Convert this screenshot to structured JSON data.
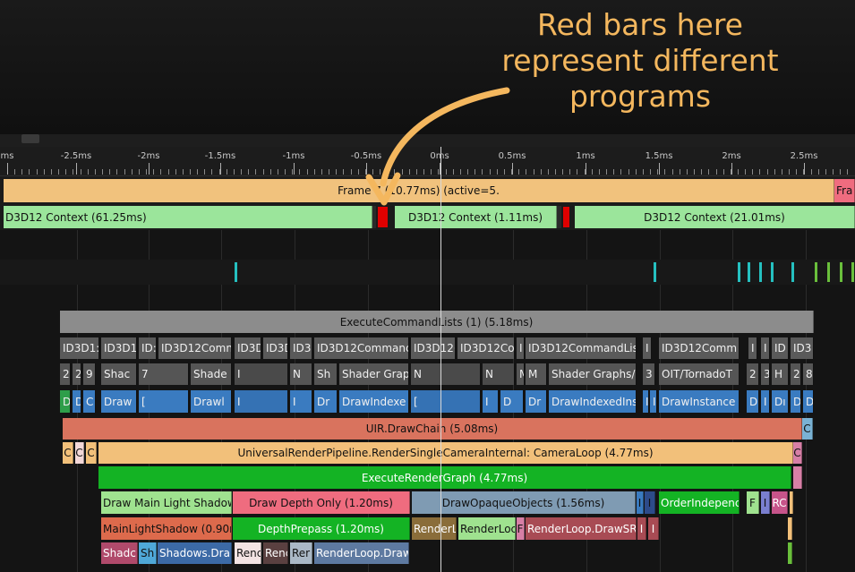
{
  "callout": {
    "lines": [
      "Red bars here",
      "represent different",
      "programs"
    ],
    "color": "#f4b75e"
  },
  "ruler": {
    "labels": [
      "ms",
      "-2.5ms",
      "-2ms",
      "-1.5ms",
      "-1ms",
      "-0.5ms",
      "0ms",
      "0.5ms",
      "1ms",
      "1.5ms",
      "2ms",
      "2.5ms"
    ]
  },
  "frame": {
    "label": "Frame 7 (10.77ms) (active=5.",
    "next_label": "Fra"
  },
  "contexts": {
    "left": "D3D12 Context (61.25ms)",
    "middle": "D3D12 Context (1.11ms)",
    "right": "D3D12 Context (21.01ms)"
  },
  "execute_command_lists": "ExecuteCommandLists (1) (5.18ms)",
  "id_row": [
    "ID3D1:",
    "ID3D1",
    "ID:",
    "ID3D12Comn",
    "ID3D",
    "ID3D",
    "ID3",
    "ID3D12Commanc",
    "ID3D12(",
    "ID3D12Co",
    "I",
    "ID3D12CommandLis",
    "I",
    "ID3D12Comm",
    "I",
    "I",
    "ID",
    "ID3"
  ],
  "shader_row": [
    "2",
    "2",
    "9",
    "Shac",
    "7",
    "Shade",
    "I",
    "N",
    "Sh",
    "Shader Grap",
    "N",
    "N",
    "M",
    "M",
    "Shader Graphs/",
    "3",
    "OIT/TornadoT",
    "2",
    "3",
    "H",
    "2",
    "8"
  ],
  "draw_row": [
    "D",
    "D",
    "C",
    "Draw",
    "[",
    "Drawl",
    "I",
    "I",
    "Dr",
    "DrawIndexe",
    "[",
    "I",
    "D",
    "Dr",
    "DrawIndexedIns",
    "I",
    "I",
    "DrawInstance",
    "D",
    "I",
    "Dı",
    "D",
    "D"
  ],
  "uir": {
    "label": "UIR.DrawChain (5.08ms)",
    "side": "C"
  },
  "camera_row": [
    "C",
    "C",
    "C",
    "UniversalRenderPipeline.RenderSingleCameraInternal: CameraLoop (4.77ms)",
    "C"
  ],
  "execute_render_graph": "ExecuteRenderGraph (4.77ms)",
  "pass_row": [
    "Draw Main Light Shadow",
    "Draw Depth Only (1.20ms)",
    "DrawOpaqueObjects (1.56ms)",
    "I",
    "I",
    "OrderIndepenc",
    "F",
    "I",
    "RC"
  ],
  "sub_row": [
    "MainLightShadow (0.90r",
    "DepthPrepass (1.20ms)",
    "RenderL",
    "RenderLoc",
    "F",
    "RenderLoop.DrawSRI",
    "I",
    "I"
  ],
  "leaf_row": [
    "Shadc",
    "Sh",
    "Shadows.Dra",
    "Renc",
    "Renc",
    "Rer",
    "RenderLoop.Draw"
  ],
  "colors": {
    "frame": "#f1c27d",
    "context": "#9be59b",
    "program_marker": "#e00000",
    "execute_lists": "#8c8c8c",
    "id_cell": "#5a5a5a",
    "draw_cell": "#3a7bc0",
    "uir": "#d9735e",
    "camera": "#f2c07a",
    "render_graph": "#14b324",
    "main_light": "#9fe28f",
    "depth_only": "#ef6c7f",
    "opaque": "#7f9bb3"
  }
}
